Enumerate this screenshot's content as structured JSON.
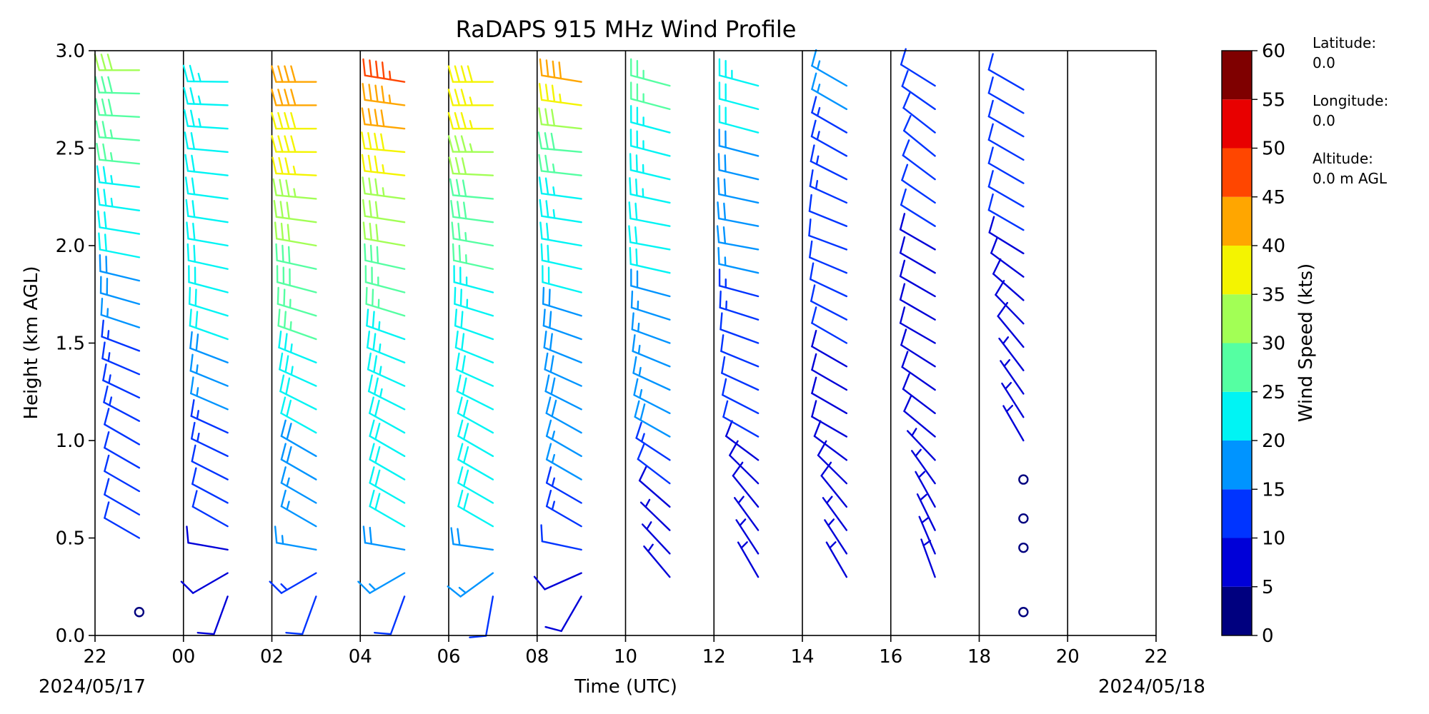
{
  "chart_data": {
    "type": "wind_barb",
    "title": "RaDAPS 915 MHz Wind Profile",
    "xlabel": "Time (UTC)",
    "ylabel": "Height (km AGL)",
    "xlim_hours": [
      0,
      24
    ],
    "ylim": [
      0.0,
      3.0
    ],
    "x_tick_labels": [
      "22",
      "00",
      "02",
      "04",
      "06",
      "08",
      "10",
      "12",
      "14",
      "16",
      "18",
      "20",
      "22"
    ],
    "y_ticks": [
      0.0,
      0.5,
      1.0,
      1.5,
      2.0,
      2.5,
      3.0
    ],
    "y_tick_labels": [
      "0.0",
      "0.5",
      "1.0",
      "1.5",
      "2.0",
      "2.5",
      "3.0"
    ],
    "start_date_label": "2024/05/17",
    "end_date_label": "2024/05/18",
    "vertical_lines_at_ticks": true,
    "colorbar": {
      "label": "Wind Speed (kts)",
      "levels": [
        0,
        5,
        10,
        15,
        20,
        25,
        30,
        35,
        40,
        45,
        50,
        55,
        60
      ],
      "tick_labels": [
        "0",
        "5",
        "10",
        "15",
        "20",
        "25",
        "30",
        "35",
        "40",
        "45",
        "50",
        "55",
        "60"
      ],
      "colors": [
        "#00007f",
        "#0000d8",
        "#0034ff",
        "#0094ff",
        "#00f4f4",
        "#55ffa2",
        "#a2ff55",
        "#f4f400",
        "#ffa600",
        "#ff4600",
        "#e80000",
        "#7f0000"
      ]
    },
    "series": [
      {
        "x": 1,
        "profile": [
          [
            0.12,
            20,
            0
          ],
          [
            0.5,
            300,
            10
          ],
          [
            1.0,
            300,
            12
          ],
          [
            1.5,
            290,
            15
          ],
          [
            2.0,
            280,
            22
          ],
          [
            2.5,
            275,
            26
          ],
          [
            2.9,
            270,
            30
          ]
        ]
      },
      {
        "x": 3,
        "profile": [
          [
            0.2,
            200,
            8
          ],
          [
            0.5,
            300,
            10
          ],
          [
            1.0,
            295,
            14
          ],
          [
            1.5,
            290,
            20
          ],
          [
            2.0,
            280,
            22
          ],
          [
            2.5,
            275,
            22
          ],
          [
            2.9,
            270,
            24
          ]
        ]
      },
      {
        "x": 5,
        "profile": [
          [
            0.2,
            200,
            12
          ],
          [
            0.5,
            300,
            16
          ],
          [
            1.0,
            300,
            20
          ],
          [
            1.5,
            290,
            26
          ],
          [
            2.0,
            280,
            30
          ],
          [
            2.5,
            270,
            38
          ],
          [
            2.9,
            270,
            42
          ]
        ]
      },
      {
        "x": 7,
        "profile": [
          [
            0.2,
            200,
            12
          ],
          [
            0.5,
            300,
            20
          ],
          [
            1.0,
            300,
            22
          ],
          [
            1.5,
            290,
            24
          ],
          [
            2.0,
            280,
            30
          ],
          [
            2.5,
            275,
            38
          ],
          [
            2.9,
            280,
            48
          ]
        ]
      },
      {
        "x": 9,
        "profile": [
          [
            0.2,
            190,
            12
          ],
          [
            0.5,
            300,
            20
          ],
          [
            1.0,
            300,
            22
          ],
          [
            1.5,
            290,
            22
          ],
          [
            2.0,
            280,
            26
          ],
          [
            2.5,
            270,
            34
          ],
          [
            2.9,
            270,
            40
          ]
        ]
      },
      {
        "x": 11,
        "profile": [
          [
            0.2,
            210,
            8
          ],
          [
            0.5,
            300,
            12
          ],
          [
            1.0,
            300,
            18
          ],
          [
            1.5,
            290,
            18
          ],
          [
            2.0,
            280,
            22
          ],
          [
            2.5,
            275,
            28
          ],
          [
            2.9,
            280,
            44
          ]
        ]
      },
      {
        "x": 13,
        "profile": [
          [
            0.3,
            320,
            6
          ],
          [
            0.7,
            310,
            8
          ],
          [
            1.0,
            300,
            18
          ],
          [
            1.5,
            290,
            16
          ],
          [
            2.0,
            280,
            22
          ],
          [
            2.5,
            285,
            24
          ],
          [
            2.9,
            285,
            26
          ]
        ]
      },
      {
        "x": 15,
        "profile": [
          [
            0.3,
            330,
            6
          ],
          [
            0.7,
            320,
            8
          ],
          [
            1.0,
            300,
            10
          ],
          [
            1.5,
            290,
            12
          ],
          [
            2.0,
            280,
            18
          ],
          [
            2.5,
            285,
            20
          ],
          [
            2.9,
            285,
            24
          ]
        ]
      },
      {
        "x": 17,
        "profile": [
          [
            0.3,
            330,
            6
          ],
          [
            0.7,
            320,
            8
          ],
          [
            1.0,
            300,
            8
          ],
          [
            1.5,
            300,
            10
          ],
          [
            2.0,
            290,
            12
          ],
          [
            2.5,
            300,
            14
          ],
          [
            2.9,
            300,
            16
          ]
        ]
      },
      {
        "x": 19,
        "profile": [
          [
            0.3,
            340,
            6
          ],
          [
            0.7,
            330,
            6
          ],
          [
            1.0,
            310,
            8
          ],
          [
            1.5,
            300,
            8
          ],
          [
            2.0,
            300,
            10
          ],
          [
            2.5,
            310,
            10
          ],
          [
            2.9,
            300,
            12
          ]
        ]
      },
      {
        "x": 21,
        "profile": [
          [
            0.12,
            0,
            0
          ],
          [
            0.45,
            0,
            0
          ],
          [
            0.6,
            0,
            0
          ],
          [
            0.8,
            0,
            0
          ],
          [
            1.0,
            330,
            6
          ],
          [
            1.5,
            320,
            8
          ],
          [
            2.0,
            300,
            10
          ],
          [
            2.5,
            300,
            12
          ],
          [
            2.9,
            300,
            10
          ]
        ]
      }
    ]
  },
  "info": {
    "latitude_label": "Latitude:",
    "latitude_value": "0.0",
    "longitude_label": "Longitude:",
    "longitude_value": "0.0",
    "altitude_label": "Altitude:",
    "altitude_value": "0.0 m AGL"
  }
}
